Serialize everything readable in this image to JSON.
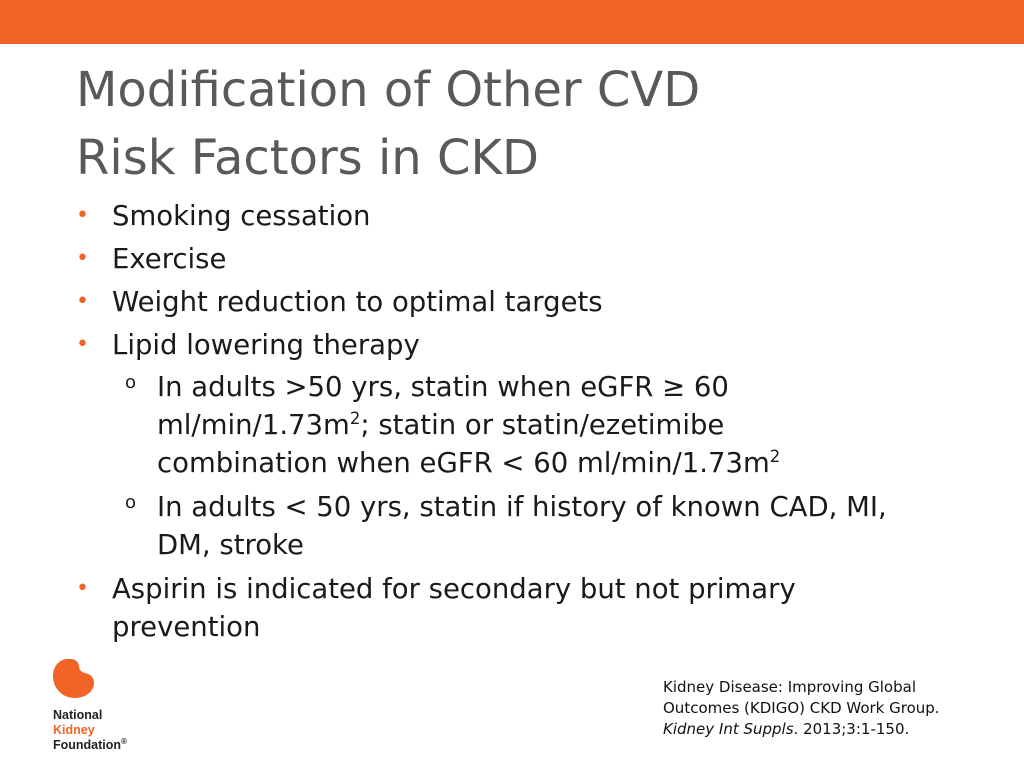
{
  "colors": {
    "accent": "#f26326",
    "title": "#595959"
  },
  "title": {
    "line1": "Modification of Other CVD",
    "line2": "Risk Factors in CKD"
  },
  "bullets": {
    "b1": "Smoking cessation",
    "b2": "Exercise",
    "b3": "Weight reduction to optimal targets",
    "b4": "Lipid lowering therapy",
    "sub1": {
      "part1": "In adults >50 yrs, statin when eGFR ≥ 60 ml/min/1.73m",
      "sup1": "2",
      "part2": "; statin or statin/ezetimibe combination when eGFR < 60 ml/min/1.73m",
      "sup2": "2"
    },
    "sub2": "In adults < 50 yrs, statin if history of known CAD, MI, DM, stroke",
    "b5": "Aspirin is indicated for secondary but not primary prevention",
    "sub_marker": "o"
  },
  "logo": {
    "line1": "National",
    "line2": "Kidney",
    "line3": "Foundation",
    "mark": "®",
    "icon": "kidney-icon"
  },
  "citation": {
    "line1": "Kidney Disease: Improving Global Outcomes (KDIGO) CKD Work Group.",
    "journal": "Kidney Int Suppls",
    "tail": ". 2013;3:1-150."
  }
}
